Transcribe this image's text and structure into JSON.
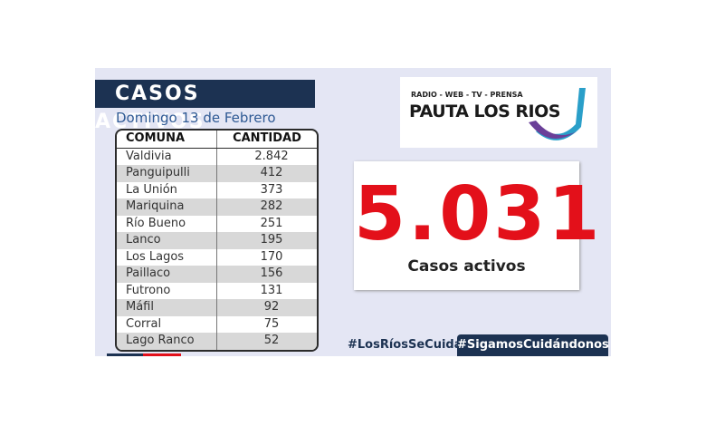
{
  "header": {
    "title": "CASOS ACTIVOS",
    "date": "Domingo 13 de Febrero"
  },
  "table": {
    "columns": [
      "COMUNA",
      "CANTIDAD"
    ],
    "rows": [
      [
        "Valdivia",
        "2.842"
      ],
      [
        "Panguipulli",
        "412"
      ],
      [
        "La Unión",
        "373"
      ],
      [
        "Mariquina",
        "282"
      ],
      [
        "Río Bueno",
        "251"
      ],
      [
        "Lanco",
        "195"
      ],
      [
        "Los Lagos",
        "170"
      ],
      [
        "Paillaco",
        "156"
      ],
      [
        "Futrono",
        "131"
      ],
      [
        "Máfil",
        "92"
      ],
      [
        "Corral",
        "75"
      ],
      [
        "Lago Ranco",
        "52"
      ]
    ]
  },
  "logo": {
    "tagline": "RADIO - WEB - TV - PRENSA",
    "name": "PAUTA LOS RIOS"
  },
  "total": {
    "value": "5.031",
    "label": "Casos activos"
  },
  "hashtags": [
    "#LosRíosSeCuida",
    "#SigamosCuidándonos"
  ]
}
